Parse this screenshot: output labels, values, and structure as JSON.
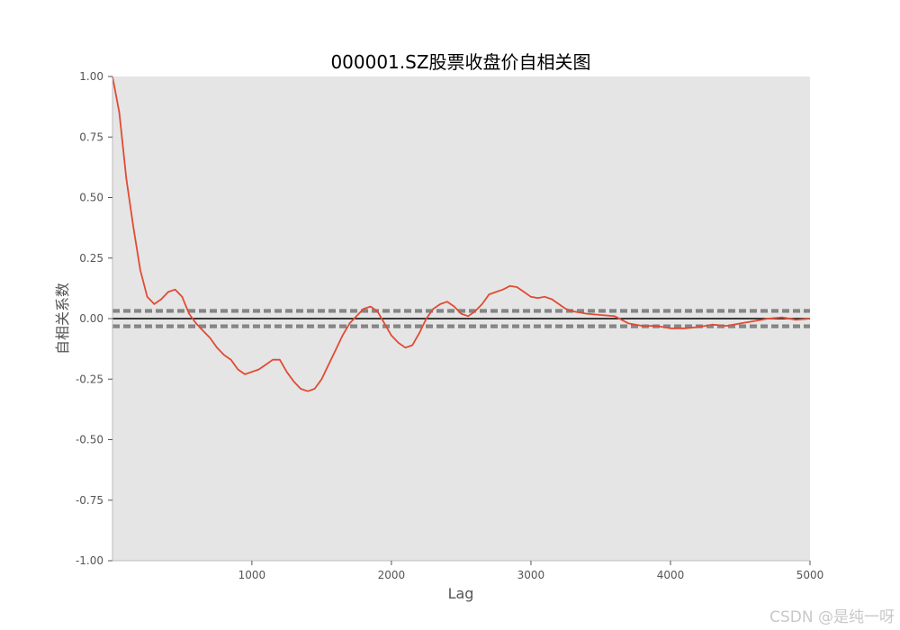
{
  "chart_data": {
    "type": "line",
    "title": "000001.SZ股票收盘价自相关图",
    "xlabel": "Lag",
    "ylabel": "自相关系数",
    "xlim": [
      1,
      5000
    ],
    "ylim": [
      -1.0,
      1.0
    ],
    "xticks": [
      1000,
      2000,
      3000,
      4000,
      5000
    ],
    "xtick_labels": [
      "1000",
      "2000",
      "3000",
      "4000",
      "5000"
    ],
    "yticks": [
      -1.0,
      -0.75,
      -0.5,
      -0.25,
      0.0,
      0.25,
      0.5,
      0.75,
      1.0
    ],
    "ytick_labels": [
      "-1.00",
      "-0.75",
      "-0.50",
      "-0.25",
      "0.00",
      "0.25",
      "0.50",
      "0.75",
      "1.00"
    ],
    "grid": false,
    "background": "#e5e5e5",
    "reference_lines": {
      "zero": {
        "y": 0.0,
        "color": "#000000",
        "style": "solid"
      },
      "confidence_95": {
        "y": [
          0.028,
          -0.028
        ],
        "color": "#808080",
        "style": "dashed"
      },
      "confidence_99": {
        "y": [
          0.036,
          -0.036
        ],
        "color": "#808080",
        "style": "dashed"
      }
    },
    "series": [
      {
        "color": "#e24a33",
        "x": [
          1,
          50,
          100,
          150,
          200,
          250,
          300,
          350,
          400,
          450,
          500,
          550,
          600,
          650,
          700,
          750,
          800,
          850,
          900,
          950,
          1000,
          1050,
          1100,
          1150,
          1200,
          1250,
          1300,
          1350,
          1400,
          1450,
          1500,
          1550,
          1600,
          1650,
          1700,
          1750,
          1800,
          1850,
          1900,
          1950,
          2000,
          2050,
          2100,
          2150,
          2200,
          2250,
          2300,
          2350,
          2400,
          2450,
          2500,
          2550,
          2600,
          2650,
          2700,
          2750,
          2800,
          2850,
          2900,
          2950,
          3000,
          3050,
          3100,
          3150,
          3200,
          3250,
          3300,
          3400,
          3500,
          3600,
          3700,
          3800,
          3900,
          4000,
          4100,
          4200,
          4300,
          4400,
          4500,
          4600,
          4700,
          4800,
          4900,
          5000
        ],
        "y": [
          1.0,
          0.85,
          0.58,
          0.38,
          0.2,
          0.09,
          0.06,
          0.08,
          0.11,
          0.12,
          0.09,
          0.02,
          -0.02,
          -0.05,
          -0.08,
          -0.12,
          -0.15,
          -0.17,
          -0.21,
          -0.23,
          -0.22,
          -0.21,
          -0.19,
          -0.17,
          -0.17,
          -0.22,
          -0.26,
          -0.29,
          -0.3,
          -0.29,
          -0.25,
          -0.19,
          -0.13,
          -0.07,
          -0.02,
          0.01,
          0.04,
          0.05,
          0.03,
          -0.02,
          -0.07,
          -0.1,
          -0.12,
          -0.11,
          -0.06,
          0.0,
          0.04,
          0.06,
          0.07,
          0.05,
          0.02,
          0.01,
          0.03,
          0.06,
          0.1,
          0.11,
          0.12,
          0.135,
          0.13,
          0.11,
          0.09,
          0.085,
          0.09,
          0.08,
          0.06,
          0.04,
          0.03,
          0.02,
          0.015,
          0.01,
          -0.02,
          -0.03,
          -0.03,
          -0.04,
          -0.04,
          -0.035,
          -0.025,
          -0.03,
          -0.02,
          -0.01,
          0.0,
          0.005,
          -0.005,
          0.0
        ]
      }
    ]
  },
  "watermark": "CSDN @是纯一呀"
}
